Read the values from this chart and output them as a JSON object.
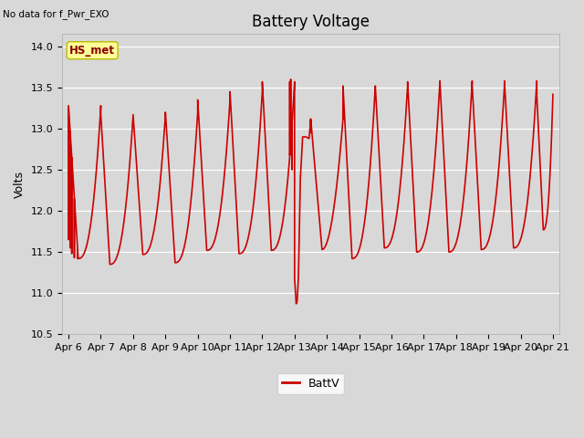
{
  "title": "Battery Voltage",
  "ylabel": "Volts",
  "top_left_text": "No data for f_Pwr_EXO",
  "legend_label": "BattV",
  "line_color": "#cc0000",
  "line_width": 1.2,
  "ylim": [
    10.5,
    14.15
  ],
  "yticks": [
    10.5,
    11.0,
    11.5,
    12.0,
    12.5,
    13.0,
    13.5,
    14.0
  ],
  "bg_color": "#d8d8d8",
  "annotation_label": "HS_met",
  "annotation_fc": "#ffff99",
  "annotation_ec": "#bbbb00",
  "annotation_tc": "#8b0000",
  "title_fontsize": 12,
  "label_fontsize": 9,
  "tick_fontsize": 8,
  "days": [
    "Apr 6",
    "Apr 7",
    "Apr 8",
    "Apr 9",
    "Apr 10",
    "Apr 11",
    "Apr 12",
    "Apr 13",
    "Apr 14",
    "Apr 15",
    "Apr 16",
    "Apr 17",
    "Apr 18",
    "Apr 19",
    "Apr 20",
    "Apr 21"
  ]
}
